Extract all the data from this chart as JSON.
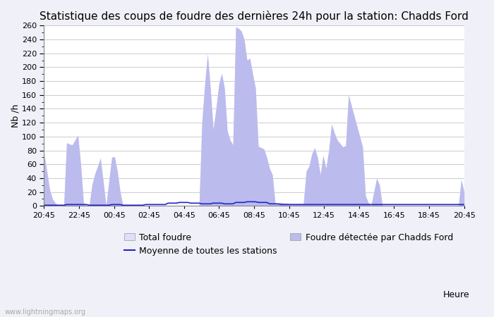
{
  "title": "Statistique des coups de foudre des dernières 24h pour la station: Chadds Ford",
  "xlabel": "Heure",
  "ylabel": "Nb /h",
  "ylim": [
    0,
    260
  ],
  "yticks": [
    0,
    20,
    40,
    60,
    80,
    100,
    120,
    140,
    160,
    180,
    200,
    220,
    240,
    260
  ],
  "x_ticks_display": [
    "20:45",
    "22:45",
    "00:45",
    "02:45",
    "04:45",
    "06:45",
    "08:45",
    "10:45",
    "12:45",
    "14:45",
    "16:45",
    "18:45",
    "20:45"
  ],
  "total_foudre": [
    75,
    50,
    23,
    10,
    4,
    1,
    0,
    0,
    91,
    89,
    88,
    95,
    102,
    60,
    4,
    0,
    0,
    30,
    46,
    57,
    69,
    35,
    0,
    35,
    70,
    71,
    50,
    20,
    0,
    0,
    0,
    0,
    0,
    0,
    0,
    0,
    0,
    0,
    0,
    0,
    0,
    0,
    0,
    0,
    0,
    0,
    0,
    0,
    0,
    0,
    0,
    0,
    0,
    0,
    0,
    0,
    120,
    175,
    219,
    170,
    110,
    140,
    175,
    191,
    170,
    108,
    95,
    88,
    258,
    256,
    252,
    240,
    210,
    213,
    190,
    170,
    86,
    84,
    82,
    70,
    54,
    45,
    3,
    4,
    5,
    4,
    4,
    3,
    3,
    3,
    3,
    3,
    3,
    50,
    57,
    75,
    84,
    70,
    45,
    73,
    54,
    80,
    118,
    105,
    95,
    90,
    85,
    87,
    160,
    145,
    130,
    115,
    100,
    85,
    15,
    5,
    0,
    20,
    40,
    30,
    0,
    0,
    0,
    0,
    0,
    0,
    0,
    0,
    0,
    0,
    0,
    0,
    0,
    0,
    0,
    0,
    0,
    0,
    0,
    0,
    0,
    0,
    0,
    0,
    0,
    0,
    0,
    0,
    38,
    20
  ],
  "foudre_chadds": [
    75,
    50,
    23,
    10,
    4,
    1,
    0,
    0,
    91,
    89,
    88,
    95,
    102,
    60,
    4,
    0,
    0,
    30,
    46,
    57,
    69,
    35,
    0,
    35,
    70,
    71,
    50,
    20,
    0,
    0,
    0,
    0,
    0,
    0,
    0,
    0,
    0,
    0,
    0,
    0,
    0,
    0,
    0,
    0,
    0,
    0,
    0,
    0,
    0,
    0,
    0,
    0,
    0,
    0,
    0,
    0,
    120,
    175,
    219,
    170,
    110,
    140,
    175,
    191,
    170,
    108,
    95,
    88,
    258,
    256,
    252,
    240,
    210,
    213,
    190,
    170,
    86,
    84,
    82,
    70,
    54,
    45,
    3,
    4,
    5,
    4,
    4,
    3,
    3,
    3,
    3,
    3,
    3,
    50,
    57,
    75,
    84,
    70,
    45,
    73,
    54,
    80,
    118,
    105,
    95,
    90,
    85,
    87,
    160,
    145,
    130,
    115,
    100,
    85,
    15,
    5,
    0,
    20,
    40,
    30,
    0,
    0,
    0,
    0,
    0,
    0,
    0,
    0,
    0,
    0,
    0,
    0,
    0,
    0,
    0,
    0,
    0,
    0,
    0,
    0,
    0,
    0,
    0,
    0,
    0,
    0,
    0,
    0,
    38,
    20
  ],
  "moyenne": [
    1,
    1,
    1,
    1,
    1,
    1,
    1,
    1,
    2,
    2,
    2,
    2,
    2,
    2,
    2,
    2,
    1,
    1,
    1,
    1,
    1,
    1,
    1,
    1,
    2,
    2,
    2,
    2,
    1,
    1,
    1,
    1,
    1,
    1,
    1,
    1,
    2,
    2,
    2,
    2,
    2,
    2,
    2,
    2,
    4,
    4,
    4,
    4,
    5,
    5,
    5,
    5,
    4,
    4,
    4,
    4,
    3,
    3,
    3,
    3,
    4,
    4,
    4,
    4,
    3,
    3,
    3,
    3,
    5,
    5,
    5,
    5,
    6,
    6,
    6,
    6,
    5,
    5,
    5,
    5,
    3,
    3,
    3,
    3,
    2,
    2,
    2,
    2,
    2,
    2,
    2,
    2,
    2,
    2,
    2,
    2,
    2,
    2,
    2,
    2,
    2,
    2,
    2,
    2,
    2,
    2,
    2,
    2,
    2,
    2,
    2,
    2,
    2,
    2,
    2,
    2,
    2,
    2,
    2,
    2,
    2,
    2,
    2,
    2,
    2,
    2,
    2,
    2,
    2,
    2,
    2,
    2,
    2,
    2,
    2,
    2,
    2,
    2,
    2,
    2,
    2,
    2,
    2,
    2,
    2,
    2,
    2,
    2,
    2,
    2
  ],
  "bg_color": "#f0f0f8",
  "plot_bg_color": "#ffffff",
  "fill_total_color": "#dde0f8",
  "fill_chadds_color": "#bbbbee",
  "line_moyenne_color": "#2222cc",
  "watermark": "www.lightningmaps.org",
  "title_fontsize": 11,
  "label_fontsize": 9,
  "tick_fontsize": 8,
  "n_points": 150,
  "n_ticks": 13,
  "tick_every": 8
}
